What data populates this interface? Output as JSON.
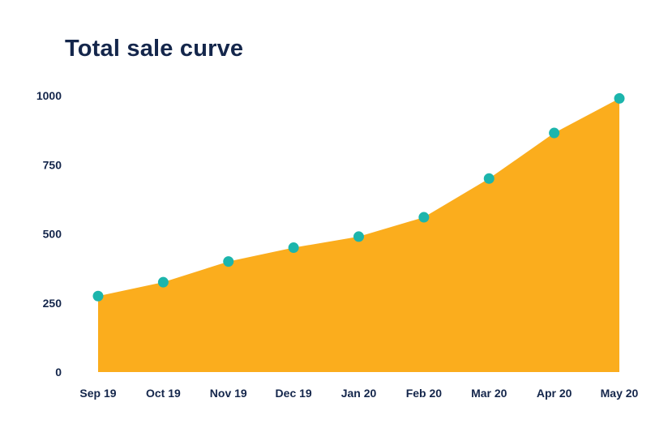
{
  "chart_data": {
    "type": "area",
    "title": "Total sale curve",
    "categories": [
      "Sep 19",
      "Oct 19",
      "Nov 19",
      "Dec 19",
      "Jan 20",
      "Feb 20",
      "Mar 20",
      "Apr 20",
      "May 20"
    ],
    "values": [
      275,
      325,
      400,
      450,
      490,
      560,
      700,
      865,
      990
    ],
    "xlabel": "",
    "ylabel": "",
    "ylim": [
      0,
      1000
    ],
    "yticks": [
      0,
      250,
      500,
      750,
      1000
    ],
    "grid": false,
    "legend": "none",
    "colors": {
      "area_fill": "#FBAD1D",
      "point_fill": "#1CB5AC",
      "text": "#14264B",
      "background": "#FFFFFF"
    }
  }
}
